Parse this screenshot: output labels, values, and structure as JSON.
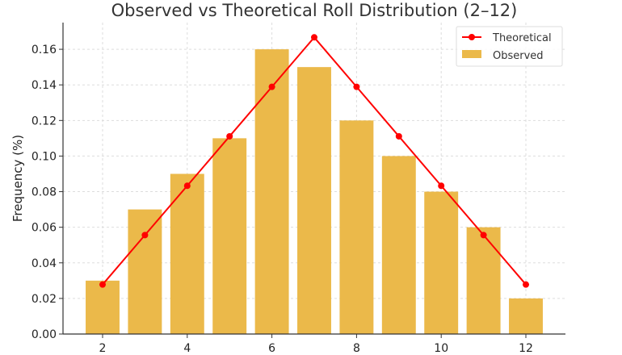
{
  "chart_data": {
    "type": "bar",
    "title": "Observed vs Theoretical Roll Distribution (2–12)",
    "xlabel": "",
    "ylabel": "Frequency (%)",
    "x": [
      2,
      3,
      4,
      5,
      6,
      7,
      8,
      9,
      10,
      11,
      12
    ],
    "xticks": [
      "2",
      "4",
      "6",
      "8",
      "10",
      "12"
    ],
    "yticks": [
      "0.00",
      "0.02",
      "0.04",
      "0.06",
      "0.08",
      "0.10",
      "0.12",
      "0.14",
      "0.16"
    ],
    "ylim": [
      0,
      0.175
    ],
    "xlim": [
      1.065,
      12.935
    ],
    "grid": true,
    "legend_position": "top-right",
    "series": [
      {
        "name": "Theoretical",
        "type": "line",
        "color": "#ff0000",
        "values": [
          0.0278,
          0.0556,
          0.0833,
          0.1111,
          0.1389,
          0.1667,
          0.1389,
          0.1111,
          0.0833,
          0.0556,
          0.0278
        ]
      },
      {
        "name": "Observed",
        "type": "bar",
        "color": "#ebb94a",
        "values": [
          0.03,
          0.07,
          0.09,
          0.11,
          0.16,
          0.15,
          0.12,
          0.1,
          0.08,
          0.06,
          0.02
        ]
      }
    ]
  }
}
